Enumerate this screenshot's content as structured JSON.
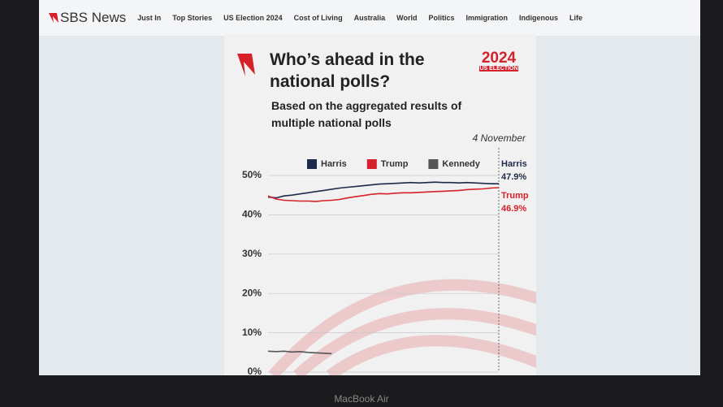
{
  "header": {
    "logo": "SBS News",
    "nav": [
      "Just In",
      "Top Stories",
      "US Election 2024",
      "Cost of Living",
      "Australia",
      "World",
      "Politics",
      "Immigration",
      "Indigenous",
      "Life"
    ]
  },
  "badge": {
    "year": "2024",
    "label": "US ELECTION"
  },
  "device": "MacBook Air",
  "chart_data": {
    "type": "line",
    "title": "Who’s ahead in the national polls?",
    "subtitle": "Based on the aggregated results of multiple national polls",
    "annotation": "4 November",
    "ylim": [
      0,
      50
    ],
    "yticks": [
      {
        "value": 0,
        "label": "0%"
      },
      {
        "value": 10,
        "label": "10%"
      },
      {
        "value": 20,
        "label": "20%"
      },
      {
        "value": 30,
        "label": "30%"
      },
      {
        "value": 40,
        "label": "40%"
      },
      {
        "value": 50,
        "label": "50%"
      }
    ],
    "grid": true,
    "legend": "top",
    "series": [
      {
        "name": "Harris",
        "color": "#1f2a4a",
        "values": [
          44.5,
          44.3,
          44.8,
          45.0,
          45.3,
          45.6,
          45.9,
          46.2,
          46.5,
          46.8,
          47.0,
          47.2,
          47.4,
          47.6,
          47.8,
          47.9,
          48.0,
          48.1,
          48.2,
          48.1,
          48.2,
          48.3,
          48.2,
          48.2,
          48.1,
          48.2,
          48.1,
          48.0,
          47.9,
          47.9
        ],
        "value_labels": [
          null,
          null,
          null,
          null,
          null,
          null,
          null,
          null,
          null,
          null,
          null,
          null,
          null,
          null,
          null,
          null,
          null,
          null,
          null,
          null,
          null,
          null,
          null,
          null,
          null,
          null,
          null,
          null,
          null,
          "47.9%"
        ]
      },
      {
        "name": "Trump",
        "color": "#d6202a",
        "values": [
          44.8,
          44.0,
          43.7,
          43.6,
          43.5,
          43.5,
          43.4,
          43.6,
          43.7,
          43.9,
          44.3,
          44.6,
          44.9,
          45.2,
          45.4,
          45.3,
          45.5,
          45.6,
          45.6,
          45.7,
          45.8,
          45.9,
          46.0,
          46.1,
          46.2,
          46.4,
          46.5,
          46.6,
          46.8,
          46.9
        ],
        "value_labels": [
          null,
          null,
          null,
          null,
          null,
          null,
          null,
          null,
          null,
          null,
          null,
          null,
          null,
          null,
          null,
          null,
          null,
          null,
          null,
          null,
          null,
          null,
          null,
          null,
          null,
          null,
          null,
          null,
          null,
          "46.9%"
        ]
      },
      {
        "name": "Kennedy",
        "color": "#555555",
        "values": [
          5.3,
          5.2,
          5.3,
          5.1,
          5.2,
          5.0,
          4.9,
          4.8,
          4.7,
          null,
          null,
          null,
          null,
          null,
          null,
          null,
          null,
          null,
          null,
          null,
          null,
          null,
          null,
          null,
          null,
          null,
          null,
          null,
          null,
          null
        ]
      }
    ]
  }
}
